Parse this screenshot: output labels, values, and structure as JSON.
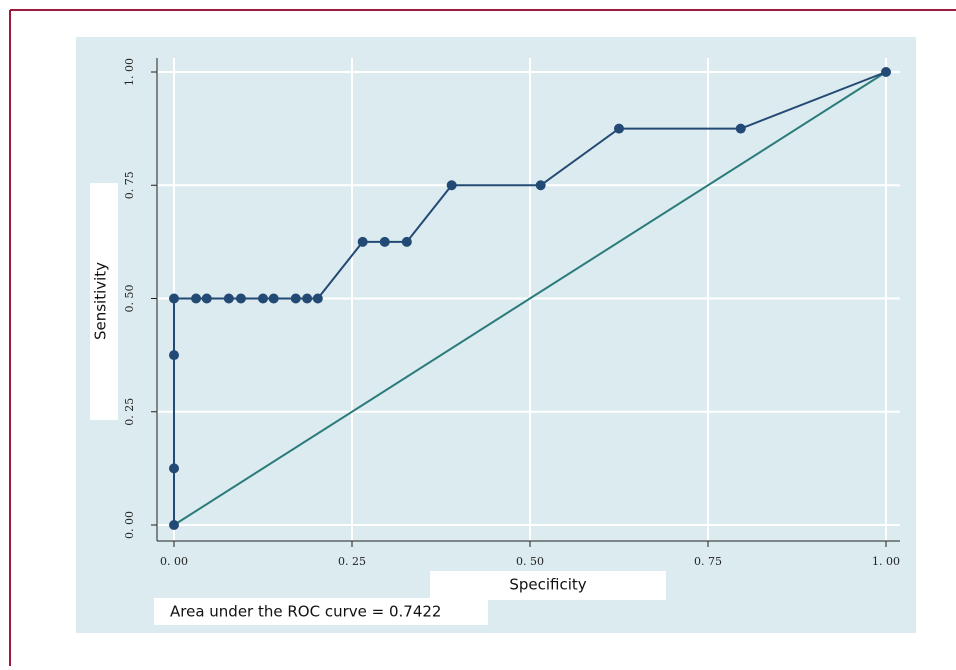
{
  "chart_data": {
    "type": "line",
    "x_label": "Specificity",
    "y_label": "Sensitivity",
    "annotation": "Area under the ROC curve = 0.7422",
    "series": [
      {
        "color": "#234a74",
        "markers": true,
        "x": [
          0,
          0,
          0,
          0,
          0.031,
          0.046,
          0.077,
          0.094,
          0.125,
          0.14,
          0.171,
          0.187,
          0.202,
          0.265,
          0.296,
          0.327,
          0.39,
          0.515,
          0.625,
          0.796,
          1
        ],
        "values": [
          0,
          0.125,
          0.375,
          0.5,
          0.5,
          0.5,
          0.5,
          0.5,
          0.5,
          0.5,
          0.5,
          0.5,
          0.5,
          0.625,
          0.625,
          0.625,
          0.75,
          0.75,
          0.875,
          0.875,
          1
        ]
      },
      {
        "color": "#2b7b7b",
        "markers": false,
        "x": [
          0,
          1
        ],
        "values": [
          0,
          1
        ]
      }
    ],
    "xlim": [
      0,
      1
    ],
    "ylim": [
      0,
      1
    ],
    "xticks": [
      {
        "value": 0,
        "label": "0. 00"
      },
      {
        "value": 0.25,
        "label": "0. 25"
      },
      {
        "value": 0.5,
        "label": "0. 50"
      },
      {
        "value": 0.75,
        "label": "0. 75"
      },
      {
        "value": 1,
        "label": "1. 00"
      }
    ],
    "yticks": [
      {
        "value": 0,
        "label": "0. 00"
      },
      {
        "value": 0.25,
        "label": "0. 25"
      },
      {
        "value": 0.5,
        "label": "0. 50"
      },
      {
        "value": 0.75,
        "label": "0. 75"
      },
      {
        "value": 1,
        "label": "1. 00"
      }
    ],
    "grid": true
  }
}
